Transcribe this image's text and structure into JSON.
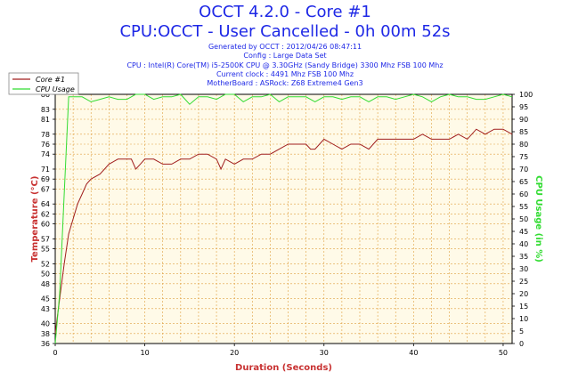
{
  "header": {
    "title": "OCCT 4.2.0 - Core #1",
    "subtitle": "CPU:OCCT - User Cancelled - 0h 00m 52s",
    "info_lines": [
      "Generated by OCCT : 2012/04/26 08:47:11",
      "Config : Large Data Set",
      "CPU : Intel(R) Core(TM) i5-2500K CPU @ 3.30GHz (Sandy Bridge) 3300 Mhz FSB 100 Mhz",
      "Current clock : 4491 Mhz FSB 100 Mhz",
      "MotherBoard : ASRock: Z68 Extreme4 Gen3"
    ]
  },
  "colors": {
    "temperature": "#a01e1e",
    "cpu_usage": "#32dc32",
    "plot_bg": "#fffae8",
    "grid": "#e0a040",
    "title": "#1e28e6",
    "axis_label": "#c83232"
  },
  "chart_data": {
    "type": "line",
    "xlabel": "Duration (Seconds)",
    "ylabel_left": "Temperature (°C)",
    "ylabel_right": "CPU Usage (in %)",
    "xlim": [
      0,
      51
    ],
    "ylim_left": [
      36,
      86
    ],
    "ylim_right": [
      0,
      100
    ],
    "x_ticks": [
      0,
      10,
      20,
      30,
      40,
      50
    ],
    "y_ticks_left": [
      36,
      38,
      40,
      43,
      45,
      48,
      50,
      52,
      55,
      57,
      60,
      62,
      64,
      67,
      69,
      71,
      74,
      76,
      78,
      81,
      83,
      86
    ],
    "y_ticks_right": [
      0,
      5,
      10,
      15,
      20,
      25,
      30,
      35,
      40,
      45,
      50,
      55,
      60,
      65,
      70,
      75,
      80,
      85,
      90,
      95,
      100
    ],
    "grid": true,
    "legend": "top-left",
    "series": [
      {
        "name": "Core #1",
        "axis": "left",
        "x": [
          0,
          0.5,
          1,
          1.5,
          2,
          2.5,
          3,
          3.5,
          4,
          5,
          6,
          7,
          8,
          8.5,
          9,
          9.5,
          10,
          11,
          12,
          13,
          14,
          15,
          16,
          17,
          18,
          18.5,
          19,
          20,
          21,
          22,
          23,
          24,
          25,
          26,
          27,
          28,
          28.5,
          29,
          30,
          31,
          32,
          33,
          34,
          35,
          36,
          37,
          38,
          39,
          40,
          41,
          42,
          43,
          44,
          45,
          46,
          47,
          48,
          49,
          50,
          51
        ],
        "values": [
          38,
          45,
          52,
          58,
          61,
          64,
          66,
          68,
          69,
          70,
          72,
          73,
          73,
          73,
          71,
          72,
          73,
          73,
          72,
          72,
          73,
          73,
          74,
          74,
          73,
          71,
          73,
          72,
          73,
          73,
          74,
          74,
          75,
          76,
          76,
          76,
          75,
          75,
          77,
          76,
          75,
          76,
          76,
          75,
          77,
          77,
          77,
          77,
          77,
          78,
          77,
          77,
          77,
          78,
          77,
          79,
          78,
          79,
          79,
          78
        ]
      },
      {
        "name": "CPU Usage",
        "axis": "right",
        "x": [
          0,
          0.5,
          1,
          1.5,
          2,
          3,
          4,
          5,
          6,
          7,
          8,
          9,
          10,
          11,
          12,
          13,
          14,
          15,
          16,
          17,
          18,
          19,
          20,
          21,
          22,
          23,
          24,
          25,
          26,
          27,
          28,
          29,
          30,
          31,
          32,
          33,
          34,
          35,
          36,
          37,
          38,
          39,
          40,
          41,
          42,
          43,
          44,
          45,
          46,
          47,
          48,
          49,
          50,
          51
        ],
        "values": [
          0,
          20,
          60,
          99,
          99,
          99,
          97,
          98,
          99,
          98,
          98,
          100,
          100,
          98,
          99,
          99,
          100,
          96,
          99,
          99,
          98,
          100,
          100,
          97,
          99,
          99,
          100,
          97,
          99,
          99,
          99,
          97,
          99,
          99,
          98,
          99,
          99,
          97,
          99,
          99,
          98,
          99,
          100,
          99,
          97,
          99,
          100,
          99,
          99,
          98,
          98,
          99,
          100,
          99
        ]
      }
    ]
  }
}
